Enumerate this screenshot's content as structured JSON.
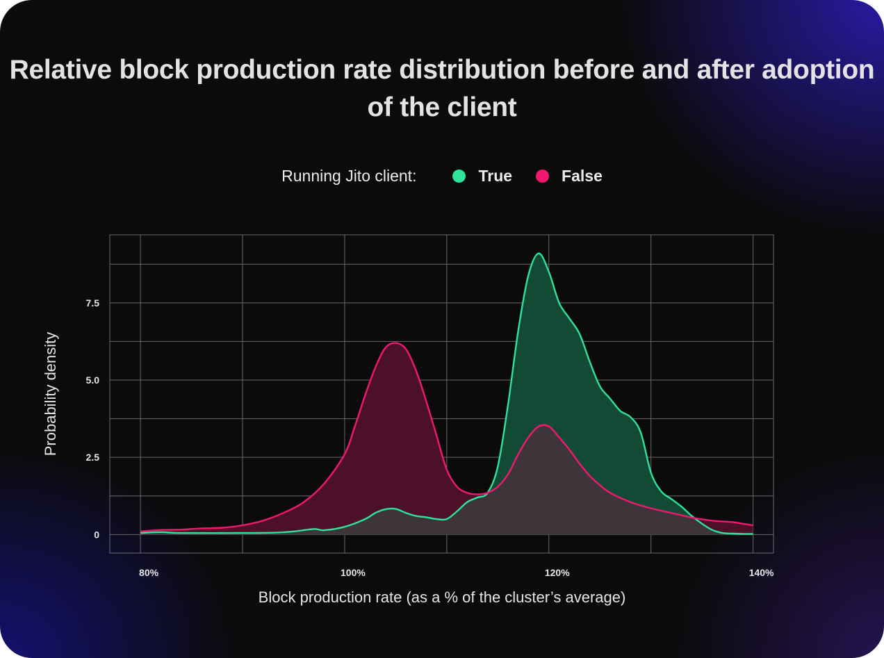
{
  "chart_data": {
    "type": "area",
    "title": "Relative block production rate distribution before and after adoption of the client",
    "legend_label": "Running Jito client:",
    "xlabel": "Block production rate (as a % of the cluster’s average)",
    "ylabel": "Probability density",
    "xlim": [
      77,
      142
    ],
    "ylim": [
      -0.6,
      9.7
    ],
    "x_ticks": [
      80,
      100,
      120,
      140
    ],
    "x_tick_labels": [
      "80%",
      "100%",
      "120%",
      "140%"
    ],
    "y_ticks": [
      0,
      2.5,
      5.0,
      7.5
    ],
    "y_tick_labels": [
      "0",
      "2.5",
      "5.0",
      "7.5"
    ],
    "grid_x": [
      80,
      90,
      100,
      110,
      120,
      130,
      140
    ],
    "grid_y": [
      0,
      1.25,
      2.5,
      3.75,
      5.0,
      6.25,
      7.5,
      8.75
    ],
    "grid": true,
    "legend_position": "top-center",
    "series": [
      {
        "name": "True",
        "color": "#2ee39a",
        "fill": "#134a35",
        "points": [
          [
            80,
            0.05
          ],
          [
            82,
            0.08
          ],
          [
            84,
            0.05
          ],
          [
            90,
            0.05
          ],
          [
            93,
            0.06
          ],
          [
            95,
            0.1
          ],
          [
            97,
            0.18
          ],
          [
            98,
            0.14
          ],
          [
            100,
            0.25
          ],
          [
            102,
            0.5
          ],
          [
            103,
            0.7
          ],
          [
            104,
            0.82
          ],
          [
            105,
            0.83
          ],
          [
            106,
            0.7
          ],
          [
            107,
            0.6
          ],
          [
            108,
            0.56
          ],
          [
            109,
            0.5
          ],
          [
            110,
            0.5
          ],
          [
            111,
            0.75
          ],
          [
            112,
            1.05
          ],
          [
            113,
            1.2
          ],
          [
            114,
            1.35
          ],
          [
            115,
            2.2
          ],
          [
            116,
            4.2
          ],
          [
            117,
            6.6
          ],
          [
            118,
            8.4
          ],
          [
            119,
            9.1
          ],
          [
            120,
            8.5
          ],
          [
            121,
            7.5
          ],
          [
            122,
            7.0
          ],
          [
            123,
            6.5
          ],
          [
            124,
            5.6
          ],
          [
            125,
            4.8
          ],
          [
            126,
            4.4
          ],
          [
            127,
            4.0
          ],
          [
            128,
            3.8
          ],
          [
            129,
            3.3
          ],
          [
            130,
            2.0
          ],
          [
            131,
            1.4
          ],
          [
            132,
            1.15
          ],
          [
            133,
            0.9
          ],
          [
            134,
            0.6
          ],
          [
            135,
            0.35
          ],
          [
            136,
            0.15
          ],
          [
            137,
            0.05
          ],
          [
            138,
            0.03
          ],
          [
            139,
            0.02
          ],
          [
            140,
            0.02
          ]
        ]
      },
      {
        "name": "False",
        "color": "#f0196f",
        "fill": "#4c1129",
        "points": [
          [
            80,
            0.1
          ],
          [
            82,
            0.15
          ],
          [
            84,
            0.16
          ],
          [
            86,
            0.2
          ],
          [
            88,
            0.22
          ],
          [
            90,
            0.3
          ],
          [
            92,
            0.45
          ],
          [
            94,
            0.7
          ],
          [
            96,
            1.05
          ],
          [
            98,
            1.65
          ],
          [
            100,
            2.6
          ],
          [
            101,
            3.5
          ],
          [
            102,
            4.5
          ],
          [
            103,
            5.4
          ],
          [
            104,
            6.05
          ],
          [
            105,
            6.2
          ],
          [
            106,
            6.0
          ],
          [
            107,
            5.3
          ],
          [
            108,
            4.3
          ],
          [
            109,
            3.2
          ],
          [
            110,
            2.1
          ],
          [
            111,
            1.55
          ],
          [
            112,
            1.35
          ],
          [
            113,
            1.3
          ],
          [
            114,
            1.35
          ],
          [
            115,
            1.55
          ],
          [
            116,
            1.95
          ],
          [
            117,
            2.6
          ],
          [
            118,
            3.15
          ],
          [
            119,
            3.5
          ],
          [
            120,
            3.5
          ],
          [
            121,
            3.15
          ],
          [
            122,
            2.75
          ],
          [
            123,
            2.3
          ],
          [
            124,
            1.9
          ],
          [
            125,
            1.6
          ],
          [
            126,
            1.35
          ],
          [
            128,
            1.05
          ],
          [
            130,
            0.85
          ],
          [
            132,
            0.7
          ],
          [
            134,
            0.55
          ],
          [
            136,
            0.45
          ],
          [
            138,
            0.4
          ],
          [
            139,
            0.35
          ],
          [
            140,
            0.3
          ]
        ]
      }
    ]
  },
  "legend": {
    "label": "Running Jito client:",
    "items": [
      {
        "label": "True",
        "color": "#2ee39a"
      },
      {
        "label": "False",
        "color": "#f0196f"
      }
    ]
  },
  "colors": {
    "grid": "#6a6a6e",
    "overlap": "#3d3539"
  }
}
